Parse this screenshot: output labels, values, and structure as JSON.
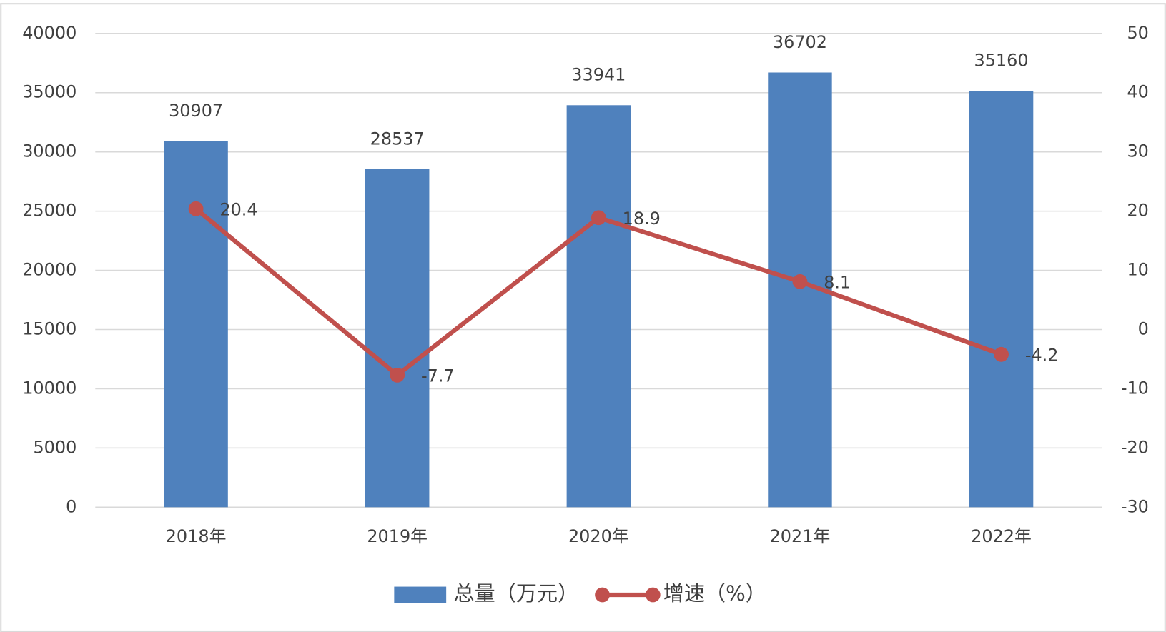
{
  "chart_data": {
    "type": "bar",
    "categories": [
      "2018年",
      "2019年",
      "2020年",
      "2021年",
      "2022年"
    ],
    "series": [
      {
        "name": "总量（万元）",
        "type": "bar",
        "color": "#4f81bd",
        "values": [
          30907,
          28537,
          33941,
          36702,
          35160
        ]
      },
      {
        "name": "增速（%）",
        "type": "line",
        "axis": "y2",
        "color": "#c0504d",
        "values": [
          20.4,
          -7.7,
          18.9,
          8.1,
          -4.2
        ]
      }
    ],
    "ylim": [
      0,
      40000
    ],
    "yticks": [
      0,
      5000,
      10000,
      15000,
      20000,
      25000,
      30000,
      35000,
      40000
    ],
    "y2lim": [
      -30,
      50
    ],
    "y2ticks": [
      -30,
      -20,
      -10,
      0,
      10,
      20,
      30,
      40,
      50
    ],
    "grid": true,
    "legend": "bottom"
  }
}
